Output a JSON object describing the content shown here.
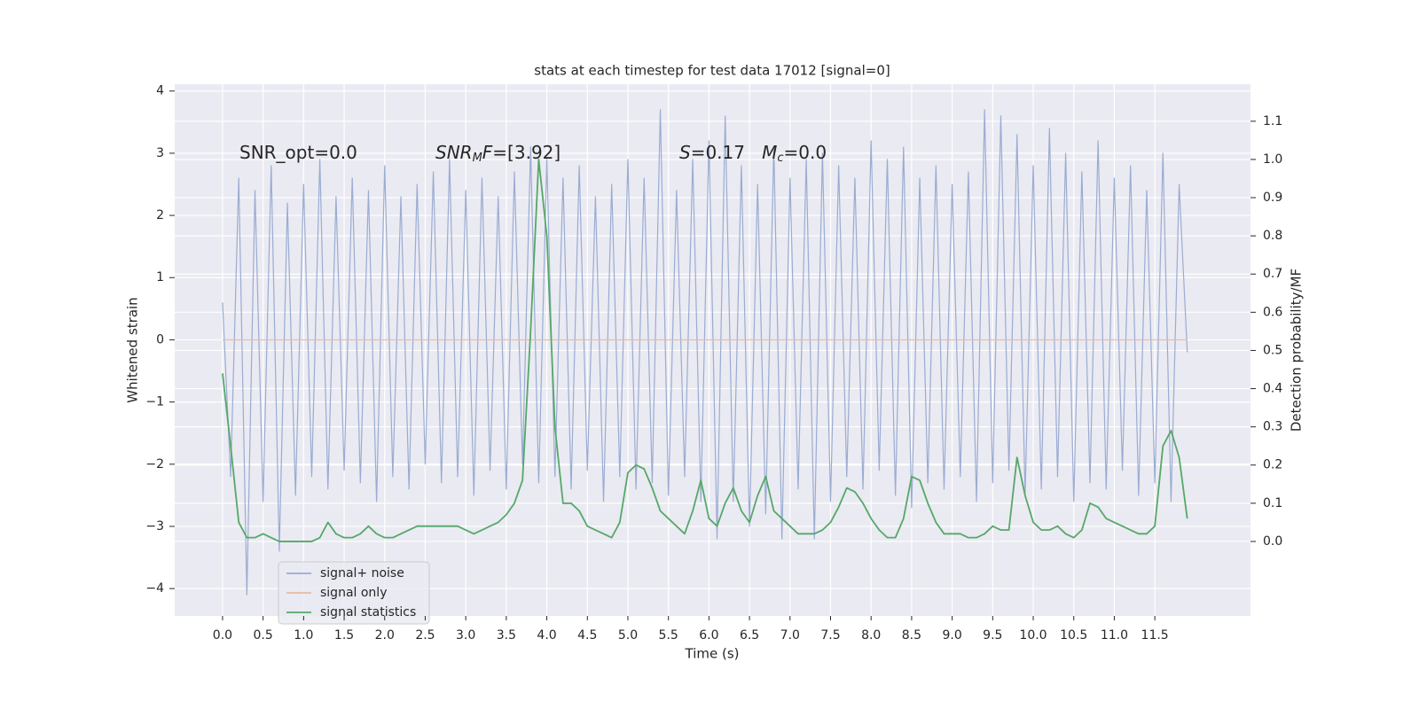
{
  "chart_data": {
    "type": "line",
    "title": "stats at each timestep for test data 17012 [signal=0]",
    "xlabel": "Time (s)",
    "ylabel": "Whitened strain",
    "y2label": "Detection probability/MF",
    "annotations": [
      {
        "parts": [
          {
            "text": "SNR_opt=0.0"
          }
        ]
      },
      {
        "parts": [
          {
            "text": "SNR",
            "italic": true
          },
          {
            "text": "M",
            "italic": true,
            "sub": true
          },
          {
            "text": "F",
            "italic": true
          },
          {
            "text": "=[3.92]"
          }
        ]
      },
      {
        "parts": [
          {
            "text": "S",
            "italic": true
          },
          {
            "text": "=0.17   "
          },
          {
            "text": "M",
            "italic": true
          },
          {
            "text": "c",
            "italic": true,
            "sub": true
          },
          {
            "text": "=0.0"
          }
        ]
      }
    ],
    "x": [
      0,
      0.1,
      0.2,
      0.3,
      0.4,
      0.5,
      0.6,
      0.7,
      0.8,
      0.9,
      1,
      1.1,
      1.2,
      1.3,
      1.4,
      1.5,
      1.6,
      1.7,
      1.8,
      1.9,
      2,
      2.1,
      2.2,
      2.3,
      2.4,
      2.5,
      2.6,
      2.7,
      2.8,
      2.9,
      3,
      3.1,
      3.2,
      3.3,
      3.4,
      3.5,
      3.6,
      3.7,
      3.8,
      3.9,
      4,
      4.1,
      4.2,
      4.3,
      4.4,
      4.5,
      4.6,
      4.7,
      4.8,
      4.9,
      5,
      5.1,
      5.2,
      5.3,
      5.4,
      5.5,
      5.6,
      5.7,
      5.8,
      5.9,
      6,
      6.1,
      6.2,
      6.3,
      6.4,
      6.5,
      6.6,
      6.7,
      6.8,
      6.9,
      7,
      7.1,
      7.2,
      7.3,
      7.4,
      7.5,
      7.6,
      7.7,
      7.8,
      7.9,
      8,
      8.1,
      8.2,
      8.3,
      8.4,
      8.5,
      8.6,
      8.7,
      8.8,
      8.9,
      9,
      9.1,
      9.2,
      9.3,
      9.4,
      9.5,
      9.6,
      9.7,
      9.8,
      9.9,
      10,
      10.1,
      10.2,
      10.3,
      10.4,
      10.5,
      10.6,
      10.7,
      10.8,
      10.9,
      11,
      11.1,
      11.2,
      11.3,
      11.4,
      11.5,
      11.6,
      11.7,
      11.8,
      11.9
    ],
    "series": [
      {
        "name": "signal+ noise",
        "color": "#9aacd2",
        "axis": "y",
        "values": [
          0.6,
          -2.2,
          2.6,
          -4.1,
          2.4,
          -2.6,
          2.8,
          -3.4,
          2.2,
          -2.5,
          2.5,
          -2.2,
          2.9,
          -2.4,
          2.3,
          -2.1,
          2.6,
          -2.3,
          2.4,
          -2.6,
          2.8,
          -2.2,
          2.3,
          -2.4,
          2.5,
          -2.0,
          2.7,
          -2.3,
          2.9,
          -2.2,
          2.4,
          -2.5,
          2.6,
          -2.1,
          2.3,
          -2.4,
          2.7,
          -2.0,
          3.1,
          -2.3,
          2.9,
          -2.2,
          2.6,
          -2.4,
          2.8,
          -2.1,
          2.3,
          -2.6,
          2.5,
          -2.2,
          2.9,
          -2.4,
          2.6,
          -2.3,
          3.7,
          -2.5,
          2.4,
          -2.2,
          2.9,
          -2.6,
          3.2,
          -3.2,
          3.6,
          -2.6,
          2.8,
          -3.0,
          2.5,
          -2.8,
          3.1,
          -3.2,
          2.6,
          -2.4,
          2.9,
          -3.2,
          3.0,
          -2.6,
          2.8,
          -2.2,
          2.6,
          -2.4,
          3.2,
          -2.1,
          2.9,
          -2.5,
          3.1,
          -2.7,
          2.6,
          -2.3,
          2.8,
          -2.4,
          2.5,
          -2.2,
          2.7,
          -2.6,
          3.7,
          -2.3,
          3.6,
          -2.1,
          3.3,
          -2.5,
          2.8,
          -2.4,
          3.4,
          -2.2,
          3.0,
          -2.6,
          2.7,
          -2.3,
          3.2,
          -2.4,
          2.6,
          -2.1,
          2.8,
          -2.5,
          2.4,
          -2.3,
          3.0,
          -2.6,
          2.5,
          -0.2
        ]
      },
      {
        "name": "signal only",
        "color": "#e9b9a0",
        "axis": "y",
        "values": [
          0,
          0,
          0,
          0,
          0,
          0,
          0,
          0,
          0,
          0,
          0,
          0,
          0,
          0,
          0,
          0,
          0,
          0,
          0,
          0,
          0,
          0,
          0,
          0,
          0,
          0,
          0,
          0,
          0,
          0,
          0,
          0,
          0,
          0,
          0,
          0,
          0,
          0,
          0,
          0,
          0,
          0,
          0,
          0,
          0,
          0,
          0,
          0,
          0,
          0,
          0,
          0,
          0,
          0,
          0,
          0,
          0,
          0,
          0,
          0,
          0,
          0,
          0,
          0,
          0,
          0,
          0,
          0,
          0,
          0,
          0,
          0,
          0,
          0,
          0,
          0,
          0,
          0,
          0,
          0,
          0,
          0,
          0,
          0,
          0,
          0,
          0,
          0,
          0,
          0,
          0,
          0,
          0,
          0,
          0,
          0,
          0,
          0,
          0,
          0,
          0,
          0,
          0,
          0,
          0,
          0,
          0,
          0,
          0,
          0,
          0,
          0,
          0,
          0,
          0,
          0,
          0,
          0,
          0,
          0
        ]
      },
      {
        "name": "signal statistics",
        "color": "#55a868",
        "axis": "y2",
        "values": [
          0.44,
          0.25,
          0.05,
          0.01,
          0.01,
          0.02,
          0.01,
          0,
          0,
          0,
          0,
          0,
          0.01,
          0.05,
          0.02,
          0.01,
          0.01,
          0.02,
          0.04,
          0.02,
          0.01,
          0.01,
          0.02,
          0.03,
          0.04,
          0.04,
          0.04,
          0.04,
          0.04,
          0.04,
          0.03,
          0.02,
          0.03,
          0.04,
          0.05,
          0.07,
          0.1,
          0.16,
          0.55,
          1.0,
          0.8,
          0.3,
          0.1,
          0.1,
          0.08,
          0.04,
          0.03,
          0.02,
          0.01,
          0.05,
          0.18,
          0.2,
          0.19,
          0.14,
          0.08,
          0.06,
          0.04,
          0.02,
          0.08,
          0.16,
          0.06,
          0.04,
          0.1,
          0.14,
          0.08,
          0.05,
          0.12,
          0.17,
          0.08,
          0.06,
          0.04,
          0.02,
          0.02,
          0.02,
          0.03,
          0.05,
          0.09,
          0.14,
          0.13,
          0.1,
          0.06,
          0.03,
          0.01,
          0.01,
          0.06,
          0.17,
          0.16,
          0.1,
          0.05,
          0.02,
          0.02,
          0.02,
          0.01,
          0.01,
          0.02,
          0.04,
          0.03,
          0.03,
          0.22,
          0.12,
          0.05,
          0.03,
          0.03,
          0.04,
          0.02,
          0.01,
          0.03,
          0.1,
          0.09,
          0.06,
          0.05,
          0.04,
          0.03,
          0.02,
          0.02,
          0.04,
          0.25,
          0.29,
          0.22,
          0.06
        ]
      }
    ],
    "xlim": [
      -0.59,
      12.68
    ],
    "xticks": [
      {
        "value": 0,
        "label": "0.0"
      },
      {
        "value": 0.5,
        "label": "0.5"
      },
      {
        "value": 1,
        "label": "1.0"
      },
      {
        "value": 1.5,
        "label": "1.5"
      },
      {
        "value": 2,
        "label": "2.0"
      },
      {
        "value": 2.5,
        "label": "2.5"
      },
      {
        "value": 3,
        "label": "3.0"
      },
      {
        "value": 3.5,
        "label": "3.5"
      },
      {
        "value": 4,
        "label": "4.0"
      },
      {
        "value": 4.5,
        "label": "4.5"
      },
      {
        "value": 5,
        "label": "5.0"
      },
      {
        "value": 5.5,
        "label": "5.5"
      },
      {
        "value": 6,
        "label": "6.0"
      },
      {
        "value": 6.5,
        "label": "6.5"
      },
      {
        "value": 7,
        "label": "7.0"
      },
      {
        "value": 7.5,
        "label": "7.5"
      },
      {
        "value": 8,
        "label": "8.0"
      },
      {
        "value": 8.5,
        "label": "8.5"
      },
      {
        "value": 9,
        "label": "9.0"
      },
      {
        "value": 9.5,
        "label": "9.5"
      },
      {
        "value": 10,
        "label": "10.0"
      },
      {
        "value": 10.5,
        "label": "10.5"
      },
      {
        "value": 11,
        "label": "11.0"
      },
      {
        "value": 11.5,
        "label": "11.5"
      }
    ],
    "ylim": [
      -4.44,
      4.11
    ],
    "yticks": [
      {
        "value": -4,
        "label": "−4"
      },
      {
        "value": -3,
        "label": "−3"
      },
      {
        "value": -2,
        "label": "−2"
      },
      {
        "value": -1,
        "label": "−1"
      },
      0,
      1,
      2,
      3,
      4
    ],
    "y2lim": [
      -0.195,
      1.197
    ],
    "y2ticks": [
      {
        "value": 0,
        "label": "0.0"
      },
      0.1,
      0.2,
      0.3,
      0.4,
      0.5,
      0.6,
      0.7,
      0.8,
      0.9,
      {
        "value": 1,
        "label": "1.0"
      },
      1.1
    ],
    "grid": true,
    "legend": "lower left"
  }
}
